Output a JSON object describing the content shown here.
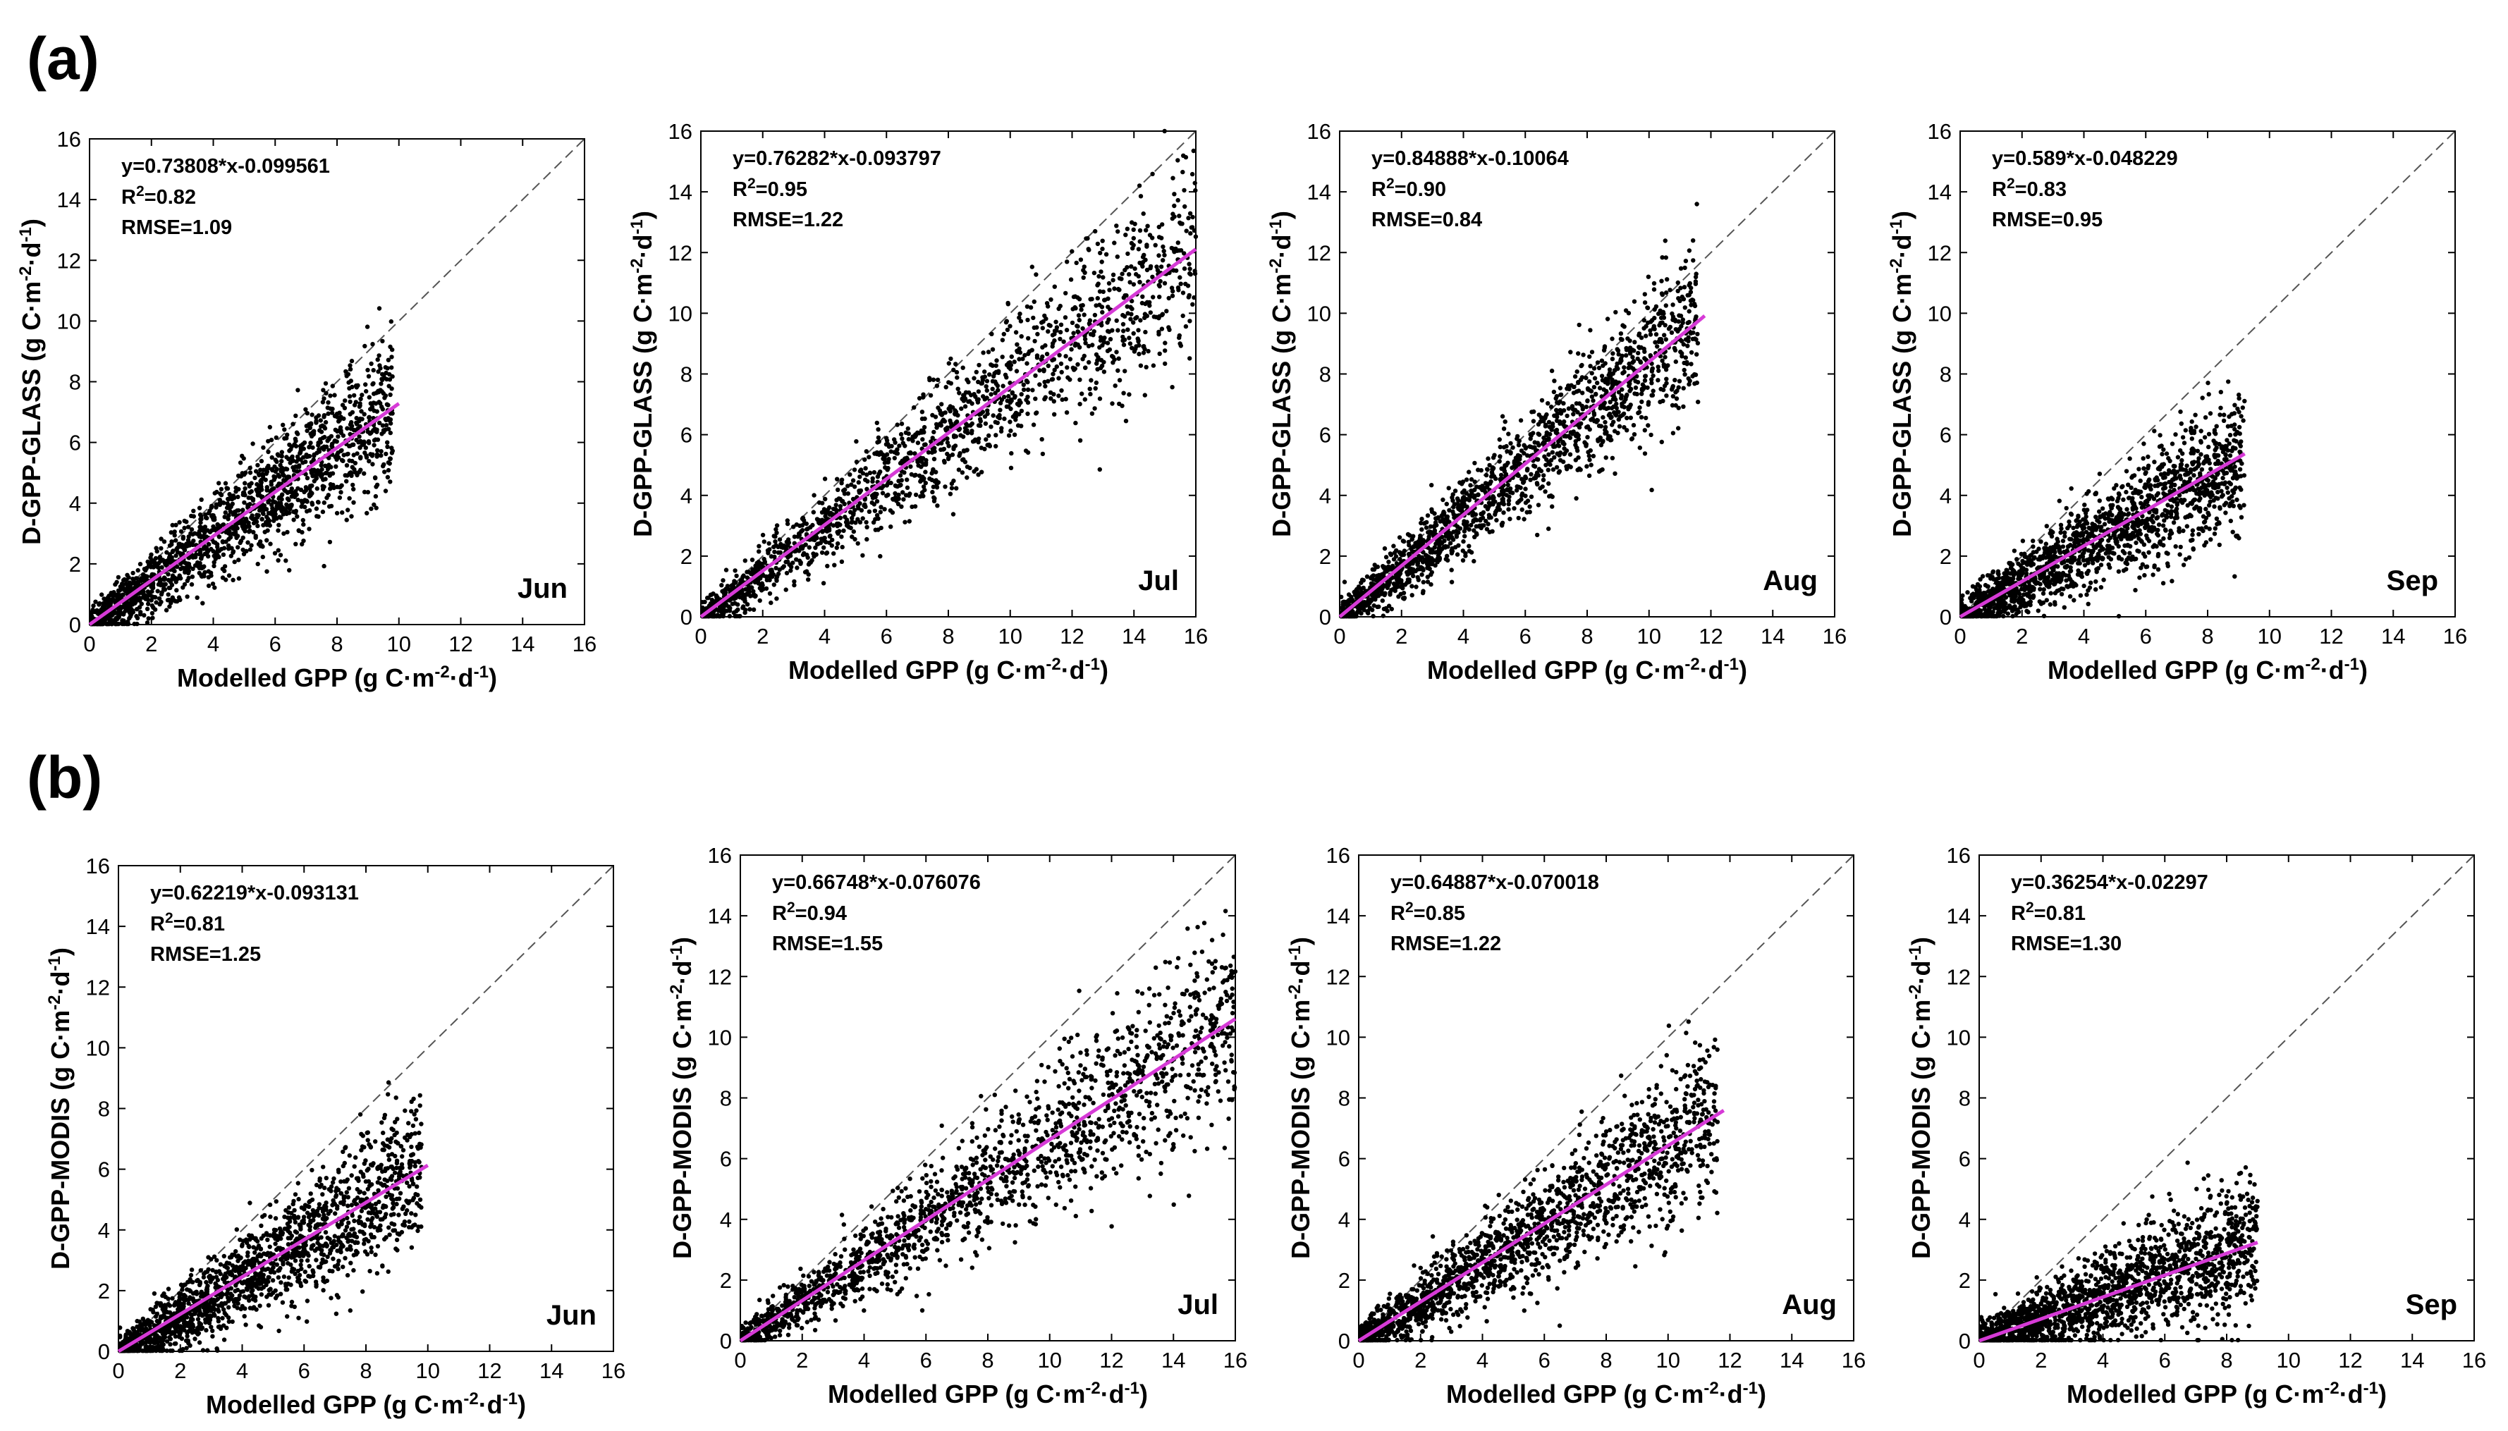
{
  "row_labels": [
    "(a)",
    "(b)"
  ],
  "chart_data": [
    {
      "type": "scatter",
      "row": 0,
      "month": "Jun",
      "ylabel": "D-GPP-GLASS",
      "xlabel": "Modelled GPP",
      "unit": "(g C·m⁻²·d⁻¹)",
      "xlim": [
        0,
        16
      ],
      "ylim": [
        0,
        16
      ],
      "xticks": [
        0,
        2,
        4,
        6,
        8,
        10,
        12,
        14,
        16
      ],
      "yticks": [
        0,
        2,
        4,
        6,
        8,
        10,
        12,
        14,
        16
      ],
      "equation": "y=0.73808*x-0.099561",
      "r2_value": "=0.82",
      "rmse": "RMSE=1.09",
      "slope": 0.73808,
      "intercept": -0.099561,
      "x_max": 9.8,
      "line_x_max": 10,
      "colors": {
        "points": "#000000",
        "fit": "#d63ad6",
        "identity": "#555555"
      }
    },
    {
      "type": "scatter",
      "row": 0,
      "month": "Jul",
      "ylabel": "D-GPP-GLASS",
      "xlabel": "Modelled GPP",
      "unit": "(g C·m⁻²·d⁻¹)",
      "xlim": [
        0,
        16
      ],
      "ylim": [
        0,
        16
      ],
      "xticks": [
        0,
        2,
        4,
        6,
        8,
        10,
        12,
        14,
        16
      ],
      "yticks": [
        0,
        2,
        4,
        6,
        8,
        10,
        12,
        14,
        16
      ],
      "equation": "y=0.76282*x-0.093797",
      "r2_value": "=0.95",
      "rmse": "RMSE=1.22",
      "slope": 0.76282,
      "intercept": -0.093797,
      "x_max": 16,
      "line_x_max": 16,
      "colors": {
        "points": "#000000",
        "fit": "#d63ad6",
        "identity": "#555555"
      }
    },
    {
      "type": "scatter",
      "row": 0,
      "month": "Aug",
      "ylabel": "D-GPP-GLASS",
      "xlabel": "Modelled GPP",
      "unit": "(g C·m⁻²·d⁻¹)",
      "xlim": [
        0,
        16
      ],
      "ylim": [
        0,
        16
      ],
      "xticks": [
        0,
        2,
        4,
        6,
        8,
        10,
        12,
        14,
        16
      ],
      "yticks": [
        0,
        2,
        4,
        6,
        8,
        10,
        12,
        14,
        16
      ],
      "equation": "y=0.84888*x-0.10064",
      "r2_value": "=0.90",
      "rmse": "RMSE=0.84",
      "slope": 0.84888,
      "intercept": -0.10064,
      "x_max": 11.6,
      "line_x_max": 11.8,
      "colors": {
        "points": "#000000",
        "fit": "#d63ad6",
        "identity": "#555555"
      }
    },
    {
      "type": "scatter",
      "row": 0,
      "month": "Sep",
      "ylabel": "D-GPP-GLASS",
      "xlabel": "Modelled GPP",
      "unit": "(g C·m⁻²·d⁻¹)",
      "xlim": [
        0,
        16
      ],
      "ylim": [
        0,
        16
      ],
      "xticks": [
        0,
        2,
        4,
        6,
        8,
        10,
        12,
        14,
        16
      ],
      "yticks": [
        0,
        2,
        4,
        6,
        8,
        10,
        12,
        14,
        16
      ],
      "equation": "y=0.589*x-0.048229",
      "r2_value": "=0.83",
      "rmse": "RMSE=0.95",
      "slope": 0.589,
      "intercept": -0.048229,
      "x_max": 9.2,
      "line_x_max": 9.2,
      "colors": {
        "points": "#000000",
        "fit": "#d63ad6",
        "identity": "#555555"
      }
    },
    {
      "type": "scatter",
      "row": 1,
      "month": "Jun",
      "ylabel": "D-GPP-MODIS",
      "xlabel": "Modelled GPP",
      "unit": "(g C·m⁻²·d⁻¹)",
      "xlim": [
        0,
        16
      ],
      "ylim": [
        0,
        16
      ],
      "xticks": [
        0,
        2,
        4,
        6,
        8,
        10,
        12,
        14,
        16
      ],
      "yticks": [
        0,
        2,
        4,
        6,
        8,
        10,
        12,
        14,
        16
      ],
      "equation": "y=0.62219*x-0.093131",
      "r2_value": "=0.81",
      "rmse": "RMSE=1.25",
      "slope": 0.62219,
      "intercept": -0.093131,
      "x_max": 9.8,
      "line_x_max": 10,
      "colors": {
        "points": "#000000",
        "fit": "#d63ad6",
        "identity": "#555555"
      }
    },
    {
      "type": "scatter",
      "row": 1,
      "month": "Jul",
      "ylabel": "D-GPP-MODIS",
      "xlabel": "Modelled GPP",
      "unit": "(g C·m⁻²·d⁻¹)",
      "xlim": [
        0,
        16
      ],
      "ylim": [
        0,
        16
      ],
      "xticks": [
        0,
        2,
        4,
        6,
        8,
        10,
        12,
        14,
        16
      ],
      "yticks": [
        0,
        2,
        4,
        6,
        8,
        10,
        12,
        14,
        16
      ],
      "equation": "y=0.66748*x-0.076076",
      "r2_value": "=0.94",
      "rmse": "RMSE=1.55",
      "slope": 0.66748,
      "intercept": -0.076076,
      "x_max": 16,
      "line_x_max": 16,
      "colors": {
        "points": "#000000",
        "fit": "#d63ad6",
        "identity": "#555555"
      }
    },
    {
      "type": "scatter",
      "row": 1,
      "month": "Aug",
      "ylabel": "D-GPP-MODIS",
      "xlabel": "Modelled GPP",
      "unit": "(g C·m⁻²·d⁻¹)",
      "xlim": [
        0,
        16
      ],
      "ylim": [
        0,
        16
      ],
      "xticks": [
        0,
        2,
        4,
        6,
        8,
        10,
        12,
        14,
        16
      ],
      "yticks": [
        0,
        2,
        4,
        6,
        8,
        10,
        12,
        14,
        16
      ],
      "equation": "y=0.64887*x-0.070018",
      "r2_value": "=0.85",
      "rmse": "RMSE=1.22",
      "slope": 0.64887,
      "intercept": -0.070018,
      "x_max": 11.6,
      "line_x_max": 11.8,
      "colors": {
        "points": "#000000",
        "fit": "#d63ad6",
        "identity": "#555555"
      }
    },
    {
      "type": "scatter",
      "row": 1,
      "month": "Sep",
      "ylabel": "D-GPP-MODIS",
      "xlabel": "Modelled GPP",
      "unit": "(g C·m⁻²·d⁻¹)",
      "xlim": [
        0,
        16
      ],
      "ylim": [
        0,
        16
      ],
      "xticks": [
        0,
        2,
        4,
        6,
        8,
        10,
        12,
        14,
        16
      ],
      "yticks": [
        0,
        2,
        4,
        6,
        8,
        10,
        12,
        14,
        16
      ],
      "equation": "y=0.36254*x-0.02297",
      "r2_value": "=0.81",
      "rmse": "RMSE=1.30",
      "slope": 0.36254,
      "intercept": -0.02297,
      "x_max": 9.0,
      "line_x_max": 9.0,
      "colors": {
        "points": "#000000",
        "fit": "#d63ad6",
        "identity": "#555555"
      }
    }
  ]
}
